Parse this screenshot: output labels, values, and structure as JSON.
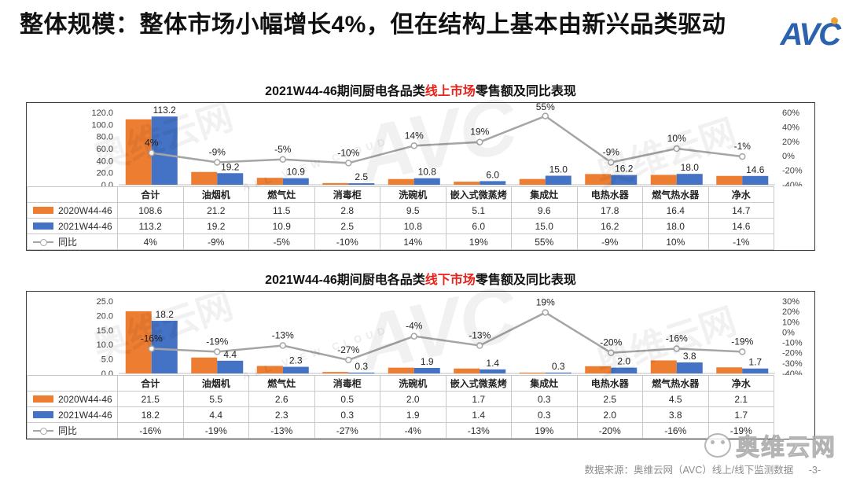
{
  "page": {
    "title": "整体规模：整体市场小幅增长4%，但在结构上基本由新兴品类驱动",
    "logo_text": "AVC",
    "footer": {
      "source": "数据来源：奥维云网（AVC）线上/线下监测数据",
      "page_number": "-3-"
    },
    "brand_watermark": "奥维云网",
    "watermark": {
      "cn": "奥维云网",
      "avc": "AVC",
      "en": "ALL VIEW CLOUD"
    },
    "colors": {
      "bar_2020": "#ED7D31",
      "bar_2021": "#4472C4",
      "line": "#A5A5A5",
      "highlight_red": "#E8231A"
    }
  },
  "chart_data": [
    {
      "type": "bar",
      "combo": "bar+line",
      "title_prefix": "2021W44-46期间厨电各品类",
      "title_highlight": "线上市场",
      "title_suffix": "零售额及同比表现",
      "legend_position": "table-left",
      "grid": false,
      "categories": [
        "合计",
        "油烟机",
        "燃气灶",
        "消毒柜",
        "洗碗机",
        "嵌入式微蒸烤",
        "集成灶",
        "电热水器",
        "燃气热水器",
        "净水"
      ],
      "series": [
        {
          "name": "2020W44-46",
          "kind": "bar",
          "color": "#ED7D31",
          "values": [
            108.6,
            21.2,
            11.5,
            2.8,
            9.5,
            5.1,
            9.6,
            17.8,
            16.4,
            14.7
          ]
        },
        {
          "name": "2021W44-46",
          "kind": "bar",
          "color": "#4472C4",
          "values": [
            113.2,
            19.2,
            10.9,
            2.5,
            10.8,
            6.0,
            15.0,
            16.2,
            18.0,
            14.6
          ]
        },
        {
          "name": "同比",
          "kind": "line",
          "color": "#A5A5A5",
          "values": [
            4,
            -9,
            -5,
            -10,
            14,
            19,
            55,
            -9,
            10,
            -1
          ],
          "labels": [
            "4%",
            "-9%",
            "-5%",
            "-10%",
            "14%",
            "19%",
            "55%",
            "-9%",
            "10%",
            "-1%"
          ]
        }
      ],
      "left_axis": {
        "ticks": [
          "120.0",
          "100.0",
          "80.0",
          "60.0",
          "40.0",
          "20.0",
          "0.0"
        ],
        "min": 0,
        "max": 120
      },
      "right_axis": {
        "ticks": [
          "60%",
          "40%",
          "20%",
          "0%",
          "-20%",
          "-40%"
        ],
        "min": -40,
        "max": 60
      }
    },
    {
      "type": "bar",
      "combo": "bar+line",
      "title_prefix": "2021W44-46期间厨电各品类",
      "title_highlight": "线下市场",
      "title_suffix": "零售额及同比表现",
      "legend_position": "table-left",
      "grid": false,
      "categories": [
        "合计",
        "油烟机",
        "燃气灶",
        "消毒柜",
        "洗碗机",
        "嵌入式微蒸烤",
        "集成灶",
        "电热水器",
        "燃气热水器",
        "净水"
      ],
      "series": [
        {
          "name": "2020W44-46",
          "kind": "bar",
          "color": "#ED7D31",
          "values": [
            21.5,
            5.5,
            2.6,
            0.5,
            2.0,
            1.7,
            0.3,
            2.5,
            4.5,
            2.1
          ]
        },
        {
          "name": "2021W44-46",
          "kind": "bar",
          "color": "#4472C4",
          "values": [
            18.2,
            4.4,
            2.3,
            0.3,
            1.9,
            1.4,
            0.3,
            2.0,
            3.8,
            1.7
          ]
        },
        {
          "name": "同比",
          "kind": "line",
          "color": "#A5A5A5",
          "values": [
            -16,
            -19,
            -13,
            -27,
            -4,
            -13,
            19,
            -20,
            -16,
            -19
          ],
          "labels": [
            "-16%",
            "-19%",
            "-13%",
            "-27%",
            "-4%",
            "-13%",
            "19%",
            "-20%",
            "-16%",
            "-19%"
          ]
        }
      ],
      "left_axis": {
        "ticks": [
          "25.0",
          "20.0",
          "15.0",
          "10.0",
          "5.0",
          "0.0"
        ],
        "min": 0,
        "max": 25
      },
      "right_axis": {
        "ticks": [
          "30%",
          "20%",
          "10%",
          "0%",
          "-10%",
          "-20%",
          "-30%",
          "-40%"
        ],
        "min": -40,
        "max": 30
      }
    }
  ]
}
